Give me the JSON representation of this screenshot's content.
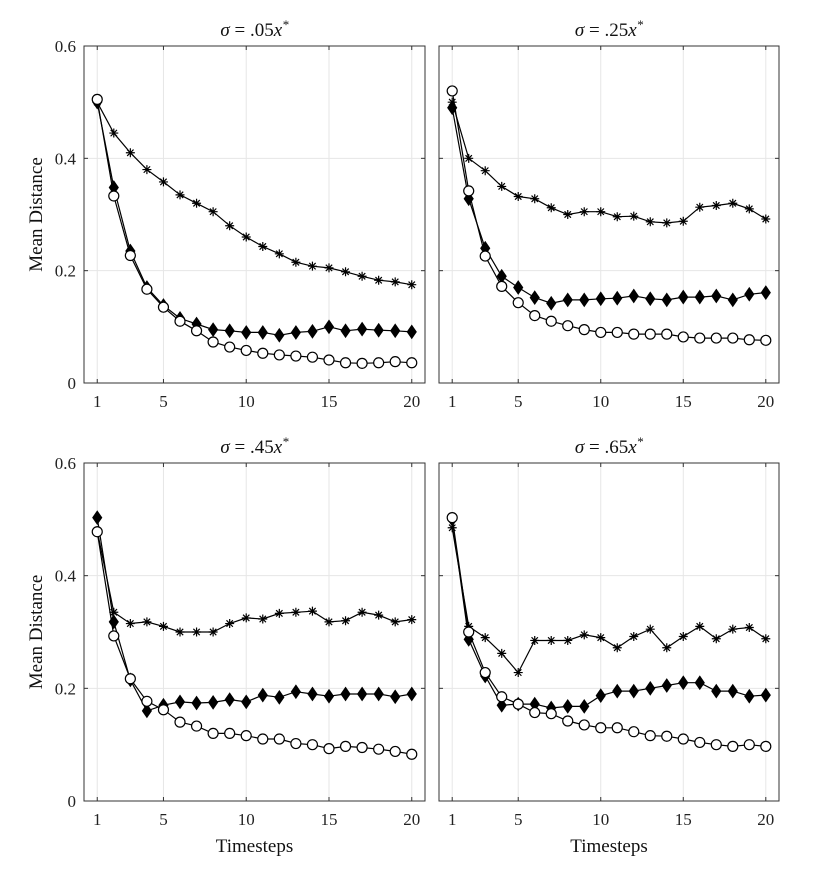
{
  "chart_data": [
    {
      "type": "line",
      "title_var": "σ",
      "title_eq": " = .05",
      "title_x": "x",
      "title_sup": "*",
      "xlabel": "",
      "ylabel": "Mean Distance",
      "xlim": [
        0.2,
        20.8
      ],
      "ylim": [
        0,
        0.6
      ],
      "xticks": [
        1,
        5,
        10,
        15,
        20
      ],
      "xtick_labels": [
        "1",
        "5",
        "10",
        "15",
        "20"
      ],
      "yticks": [
        0,
        0.2,
        0.4,
        0.6
      ],
      "ytick_labels": [
        "0",
        "0.2",
        "0.4",
        "0.6"
      ],
      "grid": true,
      "x": [
        1,
        2,
        3,
        4,
        5,
        6,
        7,
        8,
        9,
        10,
        11,
        12,
        13,
        14,
        15,
        16,
        17,
        18,
        19,
        20
      ],
      "series": [
        {
          "name": "asterisk",
          "marker": "asterisk",
          "values": [
            0.5,
            0.445,
            0.41,
            0.38,
            0.358,
            0.335,
            0.32,
            0.305,
            0.28,
            0.26,
            0.243,
            0.23,
            0.215,
            0.208,
            0.205,
            0.198,
            0.19,
            0.183,
            0.18,
            0.175
          ]
        },
        {
          "name": "diamond",
          "marker": "diamond",
          "values": [
            0.5,
            0.348,
            0.235,
            0.17,
            0.138,
            0.115,
            0.105,
            0.095,
            0.093,
            0.09,
            0.09,
            0.085,
            0.09,
            0.092,
            0.1,
            0.093,
            0.096,
            0.094,
            0.093,
            0.091
          ]
        },
        {
          "name": "circle",
          "marker": "circle",
          "values": [
            0.505,
            0.333,
            0.227,
            0.167,
            0.135,
            0.11,
            0.093,
            0.073,
            0.064,
            0.058,
            0.053,
            0.05,
            0.048,
            0.046,
            0.041,
            0.036,
            0.035,
            0.036,
            0.038,
            0.036
          ]
        }
      ]
    },
    {
      "type": "line",
      "title_var": "σ",
      "title_eq": " = .25",
      "title_x": "x",
      "title_sup": "*",
      "xlabel": "",
      "ylabel": "",
      "xlim": [
        0.2,
        20.8
      ],
      "ylim": [
        0,
        0.6
      ],
      "xticks": [
        1,
        5,
        10,
        15,
        20
      ],
      "xtick_labels": [
        "1",
        "5",
        "10",
        "15",
        "20"
      ],
      "yticks": [
        0,
        0.2,
        0.4,
        0.6
      ],
      "ytick_labels": [],
      "grid": true,
      "x": [
        1,
        2,
        3,
        4,
        5,
        6,
        7,
        8,
        9,
        10,
        11,
        12,
        13,
        14,
        15,
        16,
        17,
        18,
        19,
        20
      ],
      "series": [
        {
          "name": "asterisk",
          "marker": "asterisk",
          "values": [
            0.5,
            0.4,
            0.378,
            0.35,
            0.332,
            0.328,
            0.312,
            0.3,
            0.305,
            0.305,
            0.296,
            0.297,
            0.287,
            0.285,
            0.288,
            0.313,
            0.316,
            0.32,
            0.31,
            0.292
          ]
        },
        {
          "name": "diamond",
          "marker": "diamond",
          "values": [
            0.49,
            0.328,
            0.24,
            0.19,
            0.17,
            0.152,
            0.142,
            0.148,
            0.148,
            0.15,
            0.151,
            0.155,
            0.15,
            0.148,
            0.153,
            0.153,
            0.155,
            0.148,
            0.158,
            0.161
          ]
        },
        {
          "name": "circle",
          "marker": "circle",
          "values": [
            0.52,
            0.342,
            0.226,
            0.172,
            0.143,
            0.12,
            0.11,
            0.102,
            0.095,
            0.09,
            0.09,
            0.087,
            0.087,
            0.087,
            0.082,
            0.08,
            0.08,
            0.08,
            0.077,
            0.076
          ]
        }
      ]
    },
    {
      "type": "line",
      "title_var": "σ",
      "title_eq": " = .45",
      "title_x": "x",
      "title_sup": "*",
      "xlabel": "Timesteps",
      "ylabel": "Mean Distance",
      "xlim": [
        0.2,
        20.8
      ],
      "ylim": [
        0,
        0.6
      ],
      "xticks": [
        1,
        5,
        10,
        15,
        20
      ],
      "xtick_labels": [
        "1",
        "5",
        "10",
        "15",
        "20"
      ],
      "yticks": [
        0,
        0.2,
        0.4,
        0.6
      ],
      "ytick_labels": [
        "0",
        "0.2",
        "0.4",
        "0.6"
      ],
      "grid": true,
      "x": [
        1,
        2,
        3,
        4,
        5,
        6,
        7,
        8,
        9,
        10,
        11,
        12,
        13,
        14,
        15,
        16,
        17,
        18,
        19,
        20
      ],
      "series": [
        {
          "name": "asterisk",
          "marker": "asterisk",
          "values": [
            0.48,
            0.335,
            0.315,
            0.318,
            0.31,
            0.3,
            0.3,
            0.3,
            0.315,
            0.325,
            0.323,
            0.333,
            0.335,
            0.337,
            0.318,
            0.32,
            0.335,
            0.33,
            0.318,
            0.322
          ]
        },
        {
          "name": "diamond",
          "marker": "diamond",
          "values": [
            0.503,
            0.318,
            0.215,
            0.16,
            0.17,
            0.176,
            0.174,
            0.175,
            0.18,
            0.176,
            0.188,
            0.184,
            0.194,
            0.19,
            0.186,
            0.19,
            0.19,
            0.19,
            0.185,
            0.19
          ]
        },
        {
          "name": "circle",
          "marker": "circle",
          "values": [
            0.478,
            0.293,
            0.217,
            0.177,
            0.162,
            0.14,
            0.133,
            0.12,
            0.12,
            0.116,
            0.11,
            0.11,
            0.102,
            0.1,
            0.093,
            0.097,
            0.095,
            0.092,
            0.088,
            0.083
          ]
        }
      ]
    },
    {
      "type": "line",
      "title_var": "σ",
      "title_eq": " = .65",
      "title_x": "x",
      "title_sup": "*",
      "xlabel": "Timesteps",
      "ylabel": "",
      "xlim": [
        0.2,
        20.8
      ],
      "ylim": [
        0,
        0.6
      ],
      "xticks": [
        1,
        5,
        10,
        15,
        20
      ],
      "xtick_labels": [
        "1",
        "5",
        "10",
        "15",
        "20"
      ],
      "yticks": [
        0,
        0.2,
        0.4,
        0.6
      ],
      "ytick_labels": [],
      "grid": true,
      "x": [
        1,
        2,
        3,
        4,
        5,
        6,
        7,
        8,
        9,
        10,
        11,
        12,
        13,
        14,
        15,
        16,
        17,
        18,
        19,
        20
      ],
      "series": [
        {
          "name": "asterisk",
          "marker": "asterisk",
          "values": [
            0.485,
            0.31,
            0.29,
            0.262,
            0.228,
            0.285,
            0.285,
            0.285,
            0.295,
            0.29,
            0.272,
            0.292,
            0.305,
            0.272,
            0.292,
            0.31,
            0.288,
            0.305,
            0.308,
            0.288
          ]
        },
        {
          "name": "diamond",
          "marker": "diamond",
          "values": [
            0.5,
            0.287,
            0.222,
            0.17,
            0.172,
            0.172,
            0.165,
            0.168,
            0.168,
            0.187,
            0.195,
            0.195,
            0.2,
            0.205,
            0.21,
            0.21,
            0.195,
            0.195,
            0.186,
            0.188
          ]
        },
        {
          "name": "circle",
          "marker": "circle",
          "values": [
            0.503,
            0.3,
            0.228,
            0.185,
            0.172,
            0.157,
            0.155,
            0.142,
            0.135,
            0.13,
            0.13,
            0.123,
            0.116,
            0.115,
            0.11,
            0.104,
            0.1,
            0.097,
            0.1,
            0.097
          ]
        }
      ]
    }
  ]
}
